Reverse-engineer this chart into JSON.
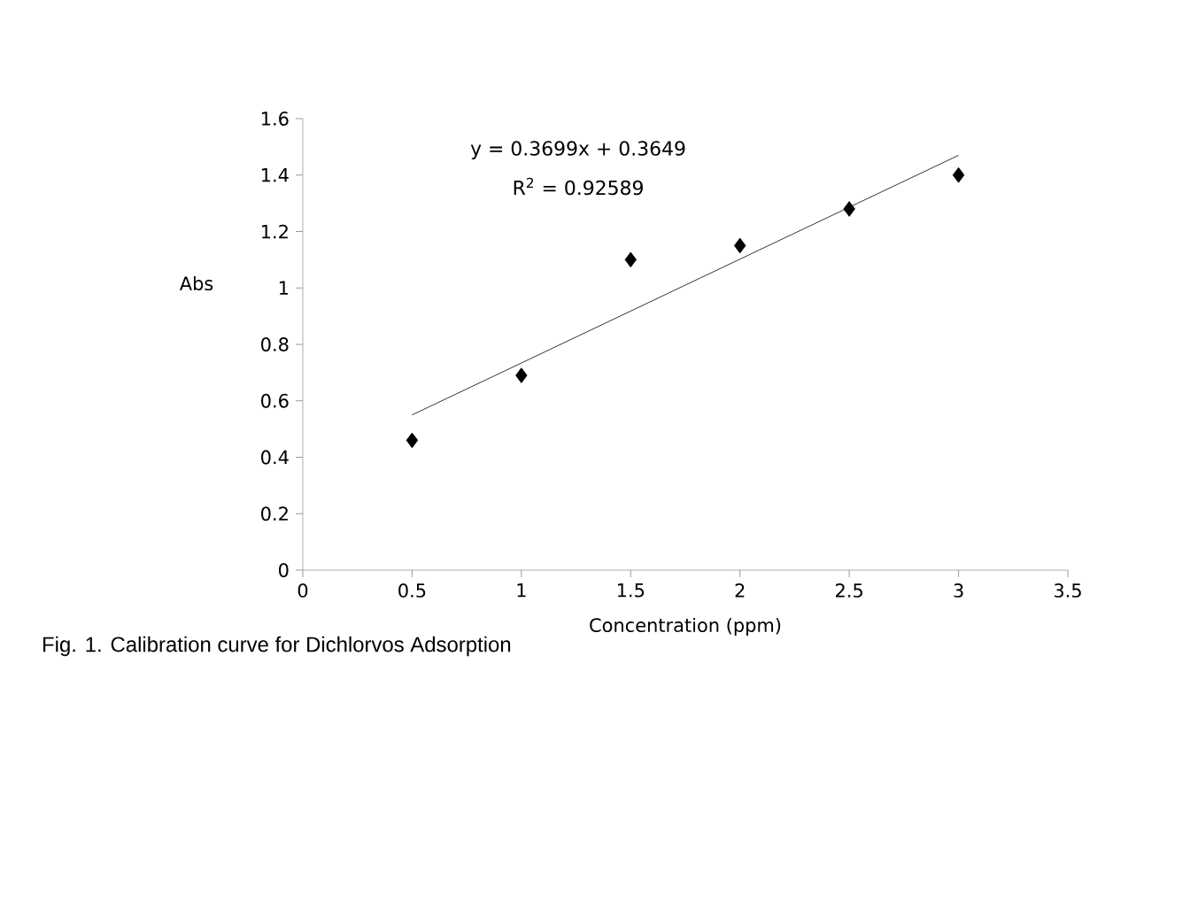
{
  "chart_data": {
    "type": "scatter",
    "xlabel": "Concentration (ppm)",
    "ylabel": "Abs",
    "xlim": [
      0,
      3.5
    ],
    "xticks": [
      0,
      0.5,
      1,
      1.5,
      2,
      2.5,
      3,
      3.5
    ],
    "ylim": [
      0,
      1.6
    ],
    "yticks": [
      0,
      0.2,
      0.4,
      0.6,
      0.8,
      1,
      1.2,
      1.4,
      1.6
    ],
    "marker": "diamond",
    "grid": false,
    "series": [
      {
        "color": "#000000",
        "x": [
          0.5,
          1,
          1.5,
          2,
          2.5,
          3
        ],
        "values": [
          0.46,
          0.69,
          1.1,
          1.15,
          1.28,
          1.4
        ]
      },
      {
        "type": "line",
        "marker": "none",
        "color": "#000000",
        "x": [
          0.5,
          3
        ],
        "values": [
          0.55,
          1.47
        ]
      }
    ],
    "annotations": [
      "y = 0.3699x + 0.3649",
      "R$^{2}$ = 0.92589",
      "Fig. 1. Calibration curve for Dichlorvos Adsorption"
    ]
  }
}
